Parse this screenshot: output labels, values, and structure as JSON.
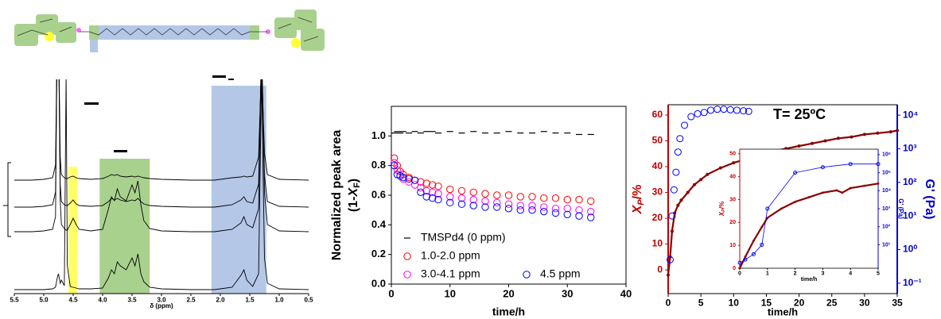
{
  "chart_data": [
    {
      "type": "spectrum",
      "xlabel": "δ (ppm)",
      "xlim": [
        5.5,
        0.5
      ],
      "xticks": [
        5.5,
        {
          "value": 5,
          "label": "5.0"
        },
        4.5,
        {
          "value": 4,
          "label": "4.0"
        },
        3.5,
        {
          "value": 3,
          "label": "3.0"
        },
        2.5,
        {
          "value": 2,
          "label": "2.0"
        },
        1.5,
        {
          "value": 1,
          "label": "1.0"
        },
        0.5
      ],
      "highlights": [
        {
          "from": 4.58,
          "to": 4.43,
          "color": "#ffff66"
        },
        {
          "from": 4.05,
          "to": 3.2,
          "color": "#a9d18e"
        },
        {
          "from": 2.15,
          "to": 1.22,
          "color": "#b4c7e7"
        }
      ],
      "x": [
        5.5,
        5.2,
        5.0,
        4.85,
        4.8,
        4.77,
        4.75,
        4.72,
        4.7,
        4.65,
        4.62,
        4.6,
        4.55,
        4.5,
        4.45,
        4.4,
        4.2,
        4.0,
        3.9,
        3.85,
        3.8,
        3.75,
        3.7,
        3.6,
        3.5,
        3.45,
        3.4,
        3.35,
        3.3,
        3.2,
        3.0,
        2.5,
        2.1,
        2.0,
        1.8,
        1.65,
        1.6,
        1.55,
        1.45,
        1.35,
        1.3,
        1.25,
        1.2,
        1.0,
        0.5
      ],
      "series": [
        {
          "color": "#000000",
          "values": [
            0,
            0,
            0,
            1,
            3,
            15,
            20,
            8,
            12,
            5,
            270,
            30,
            4,
            3,
            2,
            1,
            1,
            2,
            15,
            25,
            20,
            35,
            30,
            25,
            40,
            30,
            45,
            20,
            10,
            3,
            1,
            0,
            0,
            1,
            3,
            18,
            25,
            12,
            4,
            20,
            270,
            40,
            8,
            1,
            0
          ]
        },
        {
          "color": "#000000",
          "values": [
            1,
            1,
            2,
            4,
            20,
            270,
            270,
            40,
            10,
            5,
            3,
            3,
            10,
            18,
            10,
            4,
            2,
            4,
            30,
            45,
            40,
            55,
            45,
            40,
            60,
            50,
            65,
            35,
            15,
            5,
            2,
            1,
            1,
            2,
            4,
            12,
            20,
            10,
            6,
            30,
            250,
            50,
            10,
            2,
            1
          ]
        },
        {
          "color": "#000000",
          "values": [
            1,
            1,
            2,
            4,
            20,
            220,
            230,
            30,
            8,
            4,
            3,
            3,
            6,
            10,
            5,
            3,
            2,
            3,
            8,
            12,
            10,
            12,
            10,
            8,
            10,
            9,
            12,
            8,
            5,
            3,
            2,
            1,
            1,
            2,
            4,
            10,
            14,
            8,
            6,
            30,
            200,
            40,
            8,
            2,
            1
          ]
        },
        {
          "color": "#000000",
          "values": [
            1,
            1,
            2,
            4,
            20,
            200,
            200,
            30,
            8,
            4,
            3,
            3,
            5,
            6,
            4,
            3,
            2,
            3,
            6,
            8,
            7,
            8,
            6,
            5,
            6,
            5,
            6,
            5,
            4,
            3,
            2,
            1,
            1,
            2,
            4,
            5,
            6,
            5,
            6,
            30,
            150,
            35,
            8,
            2,
            1
          ]
        }
      ]
    },
    {
      "type": "scatter",
      "ylabel": "Normalized peak area",
      "ylabel_parts": [
        "(1-",
        "X",
        "F",
        ")"
      ],
      "xlabel": "time/h",
      "xlim": [
        0,
        40
      ],
      "xticks": [
        0,
        10,
        20,
        30,
        40
      ],
      "ylim": [
        0,
        1.2
      ],
      "yticks": [
        {
          "value": 0,
          "label": "0.0"
        },
        0.2,
        0.4,
        0.6,
        0.8,
        {
          "value": 1,
          "label": "1.0"
        }
      ],
      "x": [
        0.5,
        1,
        1.5,
        2,
        3,
        4,
        5,
        6,
        7,
        8,
        10,
        12,
        14,
        16,
        18,
        20,
        22,
        24,
        26,
        28,
        30,
        32,
        34
      ],
      "series": [
        {
          "name": "TMSPd4 (0 ppm)",
          "color": "#000000",
          "marker": "dash",
          "values": [
            1.02,
            1.03,
            1.02,
            1.03,
            1.02,
            1.03,
            1.02,
            1.03,
            1.03,
            1.02,
            1.03,
            1.02,
            1.03,
            1.02,
            1.02,
            1.03,
            1.02,
            1.02,
            1.03,
            1.02,
            1.02,
            1.01,
            1.01
          ]
        },
        {
          "name": "1.0-2.0 ppm",
          "color": "#ff0000",
          "marker": "circle",
          "values": [
            0.85,
            0.8,
            0.76,
            0.74,
            0.72,
            0.7,
            0.69,
            0.68,
            0.67,
            0.66,
            0.64,
            0.63,
            0.62,
            0.61,
            0.6,
            0.6,
            0.59,
            0.59,
            0.58,
            0.58,
            0.57,
            0.57,
            0.56
          ]
        },
        {
          "name": "3.0-4.1 ppm",
          "color": "#ff00ff",
          "marker": "circle",
          "values": [
            0.82,
            0.77,
            0.73,
            0.71,
            0.69,
            0.67,
            0.65,
            0.63,
            0.62,
            0.61,
            0.59,
            0.58,
            0.57,
            0.56,
            0.55,
            0.54,
            0.53,
            0.53,
            0.52,
            0.51,
            0.51,
            0.5,
            0.49
          ]
        },
        {
          "name": "4.5 ppm",
          "color": "#0000ff",
          "marker": "circle",
          "values": [
            0.8,
            0.74,
            0.73,
            0.72,
            0.71,
            0.7,
            0.62,
            0.59,
            0.58,
            0.57,
            0.55,
            0.54,
            0.53,
            0.52,
            0.52,
            0.51,
            0.5,
            0.5,
            0.49,
            0.48,
            0.47,
            0.46,
            0.45
          ]
        }
      ]
    },
    {
      "type": "line",
      "title": "T= 25ºC",
      "ylabel_parts": [
        "X",
        "P",
        "/%"
      ],
      "y2label": "G' (Pa)",
      "xlabel": "time/h",
      "xlim": [
        0,
        35
      ],
      "xticks": [
        0,
        5,
        10,
        15,
        20,
        25,
        30,
        35
      ],
      "ylim": [
        -9.2,
        64
      ],
      "yticks": [
        0,
        10,
        20,
        30,
        40,
        50,
        60
      ],
      "ycolor": "#c00000",
      "y2scale": "log",
      "y2lim": [
        0.049,
        20400
      ],
      "y2color": "#0000cc",
      "y2ticks": [
        {
          "value": 0.1,
          "label": "10⁻¹"
        },
        {
          "value": 1,
          "label": "10⁰"
        },
        {
          "value": 10,
          "label": "10¹"
        },
        {
          "value": 100,
          "label": "10²"
        },
        {
          "value": 1000,
          "label": "10³"
        },
        {
          "value": 10000,
          "label": "10⁴"
        }
      ],
      "series": [
        {
          "color": "#8b0000",
          "marker": "dot",
          "line": true,
          "x": [
            0,
            0.3,
            0.6,
            1,
            1.5,
            2,
            3,
            4,
            5,
            6,
            8,
            10,
            12,
            14,
            16,
            18,
            20,
            22,
            24,
            26,
            28,
            30,
            32,
            34,
            35
          ],
          "values": [
            -2,
            5,
            15,
            22,
            25,
            27,
            30,
            33,
            35,
            37,
            39.5,
            41.5,
            43,
            44.5,
            46,
            47,
            48,
            49,
            50,
            51,
            51.5,
            52.5,
            53,
            53.5,
            54
          ]
        },
        {
          "color": "#0000ff",
          "marker": "circle",
          "axis": "y2",
          "x": [
            0.3,
            0.6,
            0.9,
            1.2,
            1.5,
            1.8,
            2.5,
            3.5,
            4.5,
            5.5,
            6.5,
            7.5,
            8.5,
            9.5,
            10.5,
            11.5,
            12.3
          ],
          "values": [
            0.5,
            10,
            60,
            200,
            800,
            2000,
            5000,
            9000,
            11000,
            12000,
            14000,
            15000,
            15000,
            14500,
            14000,
            13500,
            13000
          ]
        }
      ]
    },
    {
      "type": "line",
      "ylabel_parts": [
        "X",
        "P",
        "/%"
      ],
      "y2label": "G' (Pa)",
      "xlabel": "time/h",
      "xlim": [
        0,
        5
      ],
      "xticks": [
        0,
        1,
        2,
        3,
        4,
        5
      ],
      "ylim": [
        0,
        52
      ],
      "yticks": [
        0,
        10,
        20,
        30,
        40,
        50
      ],
      "ycolor": "#c00000",
      "y2scale": "log",
      "y2lim": [
        0.5,
        2000000
      ],
      "y2color": "#0000cc",
      "y2ticks": [
        {
          "value": 10,
          "label": "10¹"
        },
        {
          "value": 100,
          "label": "10²"
        },
        {
          "value": 1000,
          "label": "10³"
        },
        {
          "value": 10000,
          "label": "10⁴"
        },
        {
          "value": 100000,
          "label": "10⁵"
        },
        {
          "value": 1000000,
          "label": "10⁶"
        }
      ],
      "series": [
        {
          "color": "#8b0000",
          "marker": "dot",
          "line": true,
          "x": [
            0,
            0.2,
            0.5,
            0.8,
            1,
            1.5,
            2,
            2.5,
            3,
            3.5,
            3.7,
            4,
            4.5,
            5
          ],
          "values": [
            0,
            5,
            12,
            18,
            22,
            26,
            29,
            31,
            33,
            34,
            33,
            35,
            36,
            37
          ]
        },
        {
          "color": "#0000ff",
          "marker": "circle",
          "line": true,
          "axis": "y2",
          "x": [
            0,
            0.2,
            0.5,
            0.8,
            1,
            2,
            3,
            4,
            5
          ],
          "values": [
            1,
            1.5,
            3,
            10,
            1000,
            100000,
            200000,
            300000,
            300000
          ]
        }
      ]
    }
  ]
}
